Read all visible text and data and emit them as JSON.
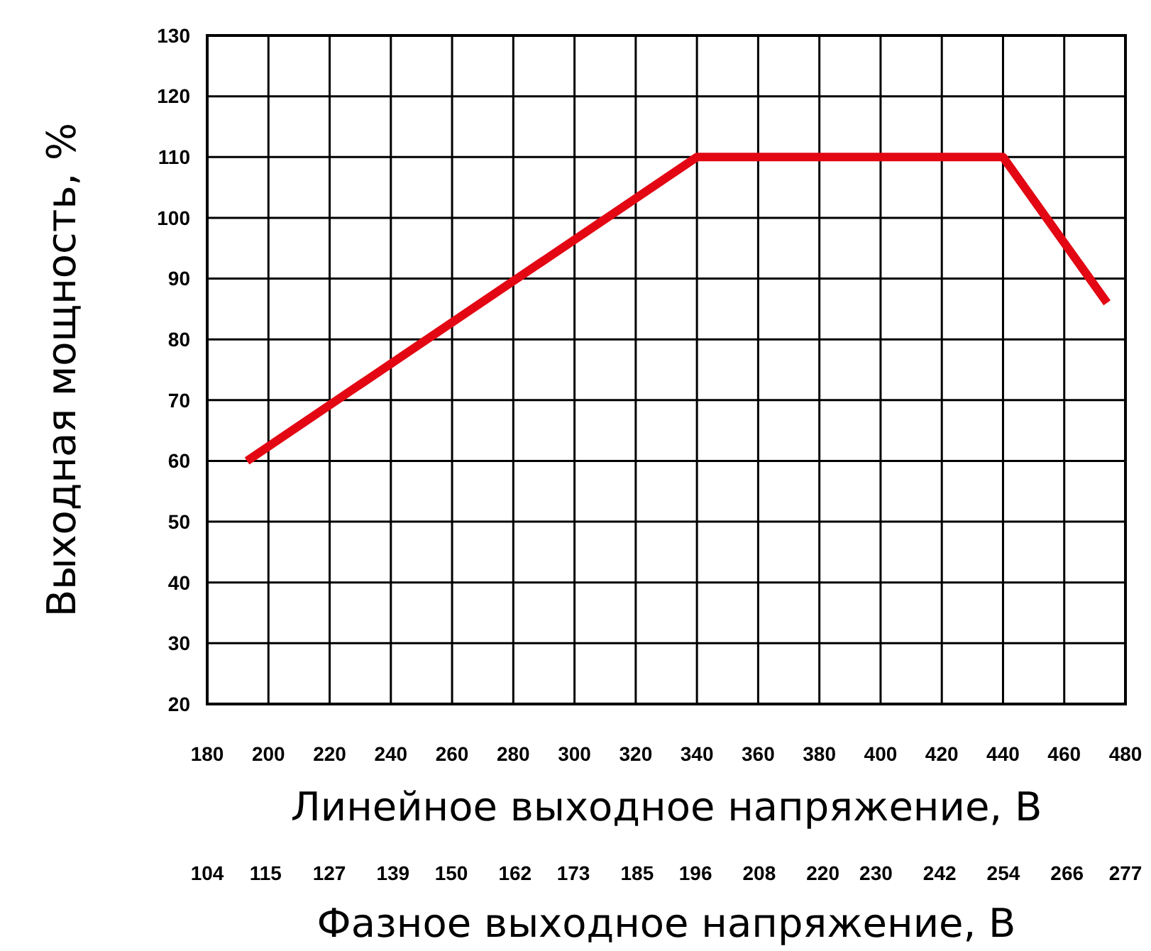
{
  "chart_data": {
    "type": "line",
    "xlabel": "Линейное выходное напряжение, В",
    "x2label": "Фазное выходное напряжение, В",
    "ylabel": "Выходная мощность, %",
    "series": [
      {
        "color": "#e30613",
        "x": [
          193,
          340,
          440,
          474
        ],
        "values": [
          60,
          110,
          110,
          86
        ]
      }
    ],
    "xlim": [
      180,
      480
    ],
    "xticks": [
      180,
      200,
      220,
      240,
      260,
      280,
      300,
      320,
      340,
      360,
      380,
      400,
      420,
      440,
      460,
      480
    ],
    "x2lim": [
      104,
      277
    ],
    "x2ticks": [
      104,
      115,
      127,
      139,
      150,
      162,
      173,
      185,
      196,
      208,
      220,
      230,
      242,
      254,
      266,
      277
    ],
    "ylim": [
      20,
      130
    ],
    "yticks": [
      20,
      30,
      40,
      50,
      60,
      70,
      80,
      90,
      100,
      110,
      120,
      130
    ],
    "grid": true,
    "marker": "none",
    "line_style": "solid"
  }
}
